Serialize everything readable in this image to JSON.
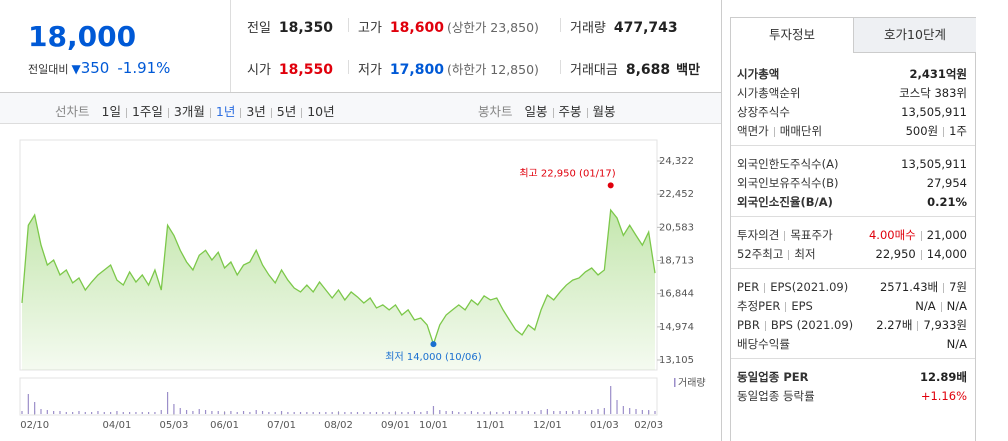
{
  "price": {
    "current": "18,000",
    "change_label": "전일대비",
    "change": "350",
    "change_rate": "-1.91%",
    "color": "#0059d6"
  },
  "summary": [
    {
      "label": "전일",
      "value": "18,350"
    },
    {
      "label": "고가",
      "value": "18,600",
      "note": "(상한가 23,850)",
      "color": "#e0000c"
    },
    {
      "label": "거래량",
      "value": "477,743"
    },
    {
      "label": "시가",
      "value": "18,550",
      "color": "#e0000c"
    },
    {
      "label": "저가",
      "value": "17,800",
      "note": "(하한가 12,850)",
      "color": "#0059d6"
    },
    {
      "label": "거래대금",
      "value": "8,688",
      "unit": "백만"
    }
  ],
  "line_periods": {
    "label": "선차트",
    "items": [
      "1일",
      "1주일",
      "3개월",
      "1년",
      "3년",
      "5년",
      "10년"
    ],
    "selected": 3
  },
  "candle_periods": {
    "label": "봉차트",
    "items": [
      "일봉",
      "주봉",
      "월봉"
    ]
  },
  "chart_data": {
    "type": "line",
    "color": "#7cc84a",
    "categories": [
      null,
      null,
      "02/10",
      null,
      null,
      null,
      null,
      null,
      null,
      null,
      null,
      null,
      null,
      null,
      null,
      "04/01",
      null,
      null,
      null,
      null,
      null,
      null,
      null,
      null,
      "05/03",
      null,
      null,
      null,
      null,
      null,
      null,
      null,
      "06/01",
      null,
      null,
      null,
      null,
      null,
      null,
      null,
      null,
      "07/01",
      null,
      null,
      null,
      null,
      null,
      null,
      null,
      null,
      "08/02",
      null,
      null,
      null,
      null,
      null,
      null,
      null,
      null,
      "09/01",
      null,
      null,
      null,
      null,
      null,
      "10/01",
      null,
      null,
      null,
      null,
      null,
      null,
      null,
      null,
      "11/01",
      null,
      null,
      null,
      null,
      null,
      null,
      null,
      null,
      "12/01",
      null,
      null,
      null,
      null,
      null,
      null,
      null,
      null,
      "01/03",
      null,
      null,
      null,
      null,
      null,
      null,
      "02/03",
      null
    ],
    "values": [
      16320,
      20700,
      21280,
      19590,
      18460,
      18740,
      17900,
      18180,
      17450,
      17730,
      17050,
      17500,
      17900,
      18180,
      18460,
      17610,
      17330,
      18070,
      17500,
      17900,
      17330,
      18180,
      17050,
      20700,
      20130,
      19290,
      18630,
      18180,
      19010,
      19290,
      18740,
      19180,
      18290,
      18630,
      17900,
      18460,
      18630,
      19290,
      18460,
      17900,
      17450,
      18180,
      17610,
      17160,
      16940,
      17330,
      16940,
      17500,
      17050,
      16600,
      17050,
      16490,
      16940,
      16660,
      16320,
      16600,
      16040,
      16210,
      15930,
      16210,
      15640,
      15930,
      15360,
      15470,
      15080,
      14000,
      15080,
      15640,
      15930,
      16210,
      15930,
      16490,
      16210,
      16720,
      16490,
      16600,
      15930,
      15360,
      14800,
      14520,
      15080,
      14800,
      15930,
      16770,
      16490,
      16940,
      17330,
      17610,
      17730,
      18070,
      18290,
      17900,
      18180,
      21560,
      21110,
      20130,
      20700,
      20130,
      19580,
      20320,
      18000
    ],
    "ylim": [
      13105,
      24322
    ],
    "yticks": [
      {
        "value": 24322,
        "label": "24,322"
      },
      {
        "value": 22452,
        "label": "22,452"
      },
      {
        "value": 20583,
        "label": "20,583"
      },
      {
        "value": 18713,
        "label": "18,713"
      },
      {
        "value": 16844,
        "label": "16,844"
      },
      {
        "value": 14974,
        "label": "14,974"
      },
      {
        "value": 13105,
        "label": "13,105"
      }
    ],
    "annotations": {
      "high": {
        "text": "최고 22,950 (01/17)",
        "value": 22950,
        "color": "#e0000c"
      },
      "low": {
        "text": "최저 14,000 (10/06)",
        "value": 14000,
        "color": "#1a6fd0"
      }
    },
    "volume": {
      "name": "거래량",
      "color": "#9b8ec9",
      "values": [
        3,
        20,
        12,
        5,
        4,
        3,
        3,
        2,
        2,
        3,
        2,
        2,
        3,
        2,
        2,
        3,
        2,
        2,
        2,
        2,
        2,
        2,
        4,
        22,
        10,
        6,
        4,
        3,
        5,
        4,
        3,
        3,
        2,
        3,
        2,
        3,
        2,
        4,
        3,
        2,
        2,
        3,
        2,
        2,
        2,
        2,
        2,
        2,
        2,
        2,
        2,
        2,
        2,
        2,
        2,
        2,
        2,
        2,
        2,
        2,
        2,
        2,
        3,
        2,
        3,
        8,
        4,
        3,
        3,
        2,
        2,
        3,
        2,
        2,
        2,
        2,
        2,
        3,
        3,
        3,
        3,
        2,
        4,
        5,
        3,
        3,
        3,
        3,
        4,
        3,
        4,
        5,
        6,
        28,
        14,
        8,
        6,
        5,
        4,
        4,
        3
      ]
    }
  },
  "tabs": {
    "items": [
      "투자정보",
      "호가10단계"
    ],
    "selected": 0
  },
  "invest": [
    [
      {
        "labels": [
          "시가총액"
        ],
        "values": [
          "2,431억원"
        ],
        "bold": true
      },
      {
        "labels": [
          "시가총액순위"
        ],
        "values": [
          "코스닥 383위"
        ]
      },
      {
        "labels": [
          "상장주식수"
        ],
        "values": [
          "13,505,911"
        ]
      },
      {
        "labels": [
          "액면가",
          "매매단위"
        ],
        "values": [
          "500원",
          "1주"
        ]
      }
    ],
    [
      {
        "labels": [
          "외국인한도주식수(A)"
        ],
        "values": [
          "13,505,911"
        ]
      },
      {
        "labels": [
          "외국인보유주식수(B)"
        ],
        "values": [
          "27,954"
        ]
      },
      {
        "labels": [
          "외국인소진율(B/A)"
        ],
        "values": [
          "0.21%"
        ],
        "bold": true
      }
    ],
    [
      {
        "labels": [
          "투자의견",
          "목표주가"
        ],
        "values": [
          "4.00매수",
          "21,000"
        ],
        "highlight": "#e0000c"
      },
      {
        "labels": [
          "52주최고",
          "최저"
        ],
        "values": [
          "22,950",
          "14,000"
        ]
      }
    ],
    [
      {
        "labels": [
          "PER",
          "EPS(2021.09)"
        ],
        "values": [
          "2571.43배",
          "7원"
        ]
      },
      {
        "labels": [
          "추정PER",
          "EPS"
        ],
        "values": [
          "N/A",
          "N/A"
        ]
      },
      {
        "labels": [
          "PBR",
          "BPS (2021.09)"
        ],
        "values": [
          "2.27배",
          "7,933원"
        ]
      },
      {
        "labels": [
          "배당수익률"
        ],
        "values": [
          "N/A"
        ]
      }
    ],
    [
      {
        "labels": [
          "동일업종 PER"
        ],
        "values": [
          "12.89배"
        ],
        "bold": true
      },
      {
        "labels": [
          "동일업종 등락률"
        ],
        "values": [
          "+1.16%"
        ],
        "highlight": "#e0000c"
      }
    ]
  ]
}
